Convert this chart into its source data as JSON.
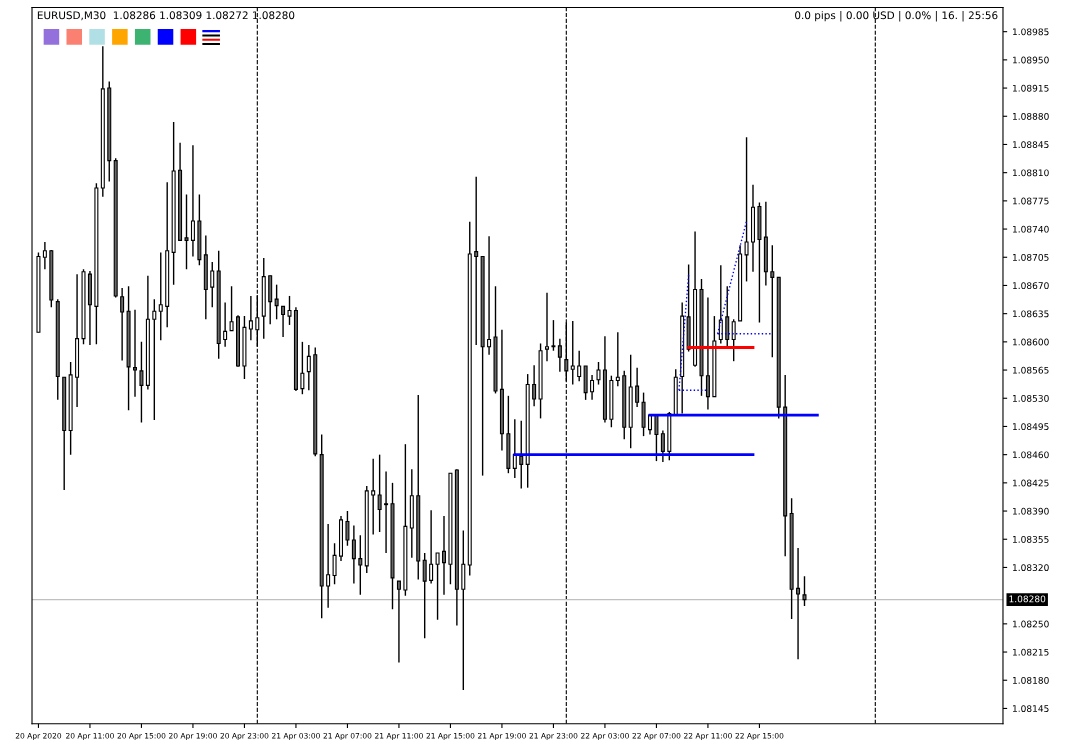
{
  "chart_data": {
    "type": "candlestick",
    "title": "EURUSD,M30  1.08286 1.08309 1.08272 1.08280",
    "annotations": [
      "0.0 pips | 0.00 USD | 0.0% | 16. | 25:56"
    ],
    "x": [
      "2020-04-20T07:00",
      "2020-04-20T07:30",
      "2020-04-20T08:00",
      "2020-04-20T08:30",
      "2020-04-20T09:00",
      "2020-04-20T09:30",
      "2020-04-20T10:00",
      "2020-04-20T10:30",
      "2020-04-20T11:00",
      "2020-04-20T11:30",
      "2020-04-20T12:00",
      "2020-04-20T12:30",
      "2020-04-20T13:00",
      "2020-04-20T13:30",
      "2020-04-20T14:00",
      "2020-04-20T14:30",
      "2020-04-20T15:00",
      "2020-04-20T15:30",
      "2020-04-20T16:00",
      "2020-04-20T16:30",
      "2020-04-20T17:00",
      "2020-04-20T17:30",
      "2020-04-20T18:00",
      "2020-04-20T18:30",
      "2020-04-20T19:00",
      "2020-04-20T19:30",
      "2020-04-20T20:00",
      "2020-04-20T20:30",
      "2020-04-20T21:00",
      "2020-04-20T21:30",
      "2020-04-20T22:00",
      "2020-04-20T22:30",
      "2020-04-20T23:00",
      "2020-04-20T23:30",
      "2020-04-21T00:00",
      "2020-04-21T00:30",
      "2020-04-21T01:00",
      "2020-04-21T01:30",
      "2020-04-21T02:00",
      "2020-04-21T02:30",
      "2020-04-21T03:00",
      "2020-04-21T03:30",
      "2020-04-21T04:00",
      "2020-04-21T04:30",
      "2020-04-21T05:00",
      "2020-04-21T05:30",
      "2020-04-21T06:00",
      "2020-04-21T06:30",
      "2020-04-21T07:00",
      "2020-04-21T07:30",
      "2020-04-21T08:00",
      "2020-04-21T08:30",
      "2020-04-21T09:00",
      "2020-04-21T09:30",
      "2020-04-21T10:00",
      "2020-04-21T10:30",
      "2020-04-21T11:00",
      "2020-04-21T11:30",
      "2020-04-21T12:00",
      "2020-04-21T12:30",
      "2020-04-21T13:00",
      "2020-04-21T13:30",
      "2020-04-21T14:00",
      "2020-04-21T14:30",
      "2020-04-21T15:00",
      "2020-04-21T15:30",
      "2020-04-21T16:00",
      "2020-04-21T16:30",
      "2020-04-21T17:00",
      "2020-04-21T17:30",
      "2020-04-21T18:00",
      "2020-04-21T18:30",
      "2020-04-21T19:00",
      "2020-04-21T19:30",
      "2020-04-21T20:00",
      "2020-04-21T20:30",
      "2020-04-21T21:00",
      "2020-04-21T21:30",
      "2020-04-21T22:00",
      "2020-04-21T22:30",
      "2020-04-21T23:00",
      "2020-04-21T23:30",
      "2020-04-22T00:00",
      "2020-04-22T00:30",
      "2020-04-22T01:00",
      "2020-04-22T01:30",
      "2020-04-22T02:00",
      "2020-04-22T02:30",
      "2020-04-22T03:00",
      "2020-04-22T03:30",
      "2020-04-22T04:00",
      "2020-04-22T04:30",
      "2020-04-22T05:00",
      "2020-04-22T05:30",
      "2020-04-22T06:00",
      "2020-04-22T06:30",
      "2020-04-22T07:00",
      "2020-04-22T07:30",
      "2020-04-22T08:00",
      "2020-04-22T08:30",
      "2020-04-22T09:00",
      "2020-04-22T09:30",
      "2020-04-22T10:00",
      "2020-04-22T10:30",
      "2020-04-22T11:00",
      "2020-04-22T11:30",
      "2020-04-22T12:00",
      "2020-04-22T12:30",
      "2020-04-22T13:00",
      "2020-04-22T13:30",
      "2020-04-22T14:00",
      "2020-04-22T14:30",
      "2020-04-22T15:00",
      "2020-04-22T15:30",
      "2020-04-22T16:00",
      "2020-04-22T16:30",
      "2020-04-22T17:00",
      "2020-04-22T17:30",
      "2020-04-22T18:00",
      "2020-04-22T18:30"
    ],
    "ohlc": [
      [
        1.08612,
        1.08711,
        1.08612,
        1.08706
      ],
      [
        1.08705,
        1.08724,
        1.0869,
        1.08713
      ],
      [
        1.08713,
        1.08714,
        1.08643,
        1.08652
      ],
      [
        1.0865,
        1.08653,
        1.08528,
        1.08557
      ],
      [
        1.08556,
        1.08556,
        1.08416,
        1.0849
      ],
      [
        1.0849,
        1.08575,
        1.0846,
        1.08559
      ],
      [
        1.08556,
        1.08684,
        1.08519,
        1.08604
      ],
      [
        1.08604,
        1.0869,
        1.08597,
        1.08687
      ],
      [
        1.08684,
        1.08688,
        1.08596,
        1.08646
      ],
      [
        1.08644,
        1.08797,
        1.08597,
        1.08791
      ],
      [
        1.08791,
        1.08967,
        1.0878,
        1.08914
      ],
      [
        1.08915,
        1.08923,
        1.08799,
        1.08825
      ],
      [
        1.08825,
        1.08828,
        1.08655,
        1.08657
      ],
      [
        1.08656,
        1.08667,
        1.08577,
        1.08637
      ],
      [
        1.08638,
        1.08669,
        1.08515,
        1.08569
      ],
      [
        1.08568,
        1.0864,
        1.08532,
        1.08565
      ],
      [
        1.08564,
        1.086,
        1.085,
        1.08546
      ],
      [
        1.08546,
        1.08682,
        1.08541,
        1.08628
      ],
      [
        1.08628,
        1.08653,
        1.08503,
        1.08638
      ],
      [
        1.08638,
        1.08711,
        1.08602,
        1.08646
      ],
      [
        1.08644,
        1.08798,
        1.08618,
        1.08713
      ],
      [
        1.08711,
        1.08873,
        1.08671,
        1.08812
      ],
      [
        1.08813,
        1.08847,
        1.08726,
        1.08726
      ],
      [
        1.08729,
        1.08783,
        1.0869,
        1.08726
      ],
      [
        1.08726,
        1.08844,
        1.08706,
        1.0875
      ],
      [
        1.0875,
        1.08783,
        1.08695,
        1.08702
      ],
      [
        1.08708,
        1.08732,
        1.08628,
        1.08665
      ],
      [
        1.08668,
        1.08699,
        1.08643,
        1.08688
      ],
      [
        1.08688,
        1.08713,
        1.08579,
        1.08598
      ],
      [
        1.08603,
        1.08649,
        1.08594,
        1.08613
      ],
      [
        1.08614,
        1.08669,
        1.08614,
        1.08625
      ],
      [
        1.08631,
        1.08633,
        1.08569,
        1.0857
      ],
      [
        1.0857,
        1.08632,
        1.08554,
        1.08618
      ],
      [
        1.08616,
        1.08657,
        1.08602,
        1.08626
      ],
      [
        1.08615,
        1.08658,
        1.08594,
        1.0863
      ],
      [
        1.08632,
        1.08704,
        1.08604,
        1.08681
      ],
      [
        1.08682,
        1.08682,
        1.08622,
        1.0865
      ],
      [
        1.08653,
        1.08671,
        1.08628,
        1.08645
      ],
      [
        1.08644,
        1.08644,
        1.08606,
        1.08634
      ],
      [
        1.08632,
        1.08657,
        1.08621,
        1.08639
      ],
      [
        1.08639,
        1.08643,
        1.08539,
        1.08541
      ],
      [
        1.08542,
        1.086,
        1.08535,
        1.08561
      ],
      [
        1.08563,
        1.08596,
        1.0854,
        1.08582
      ],
      [
        1.08584,
        1.08593,
        1.08458,
        1.08461
      ],
      [
        1.0846,
        1.08485,
        1.08257,
        1.08297
      ],
      [
        1.08297,
        1.08374,
        1.0827,
        1.08311
      ],
      [
        1.0831,
        1.0835,
        1.08299,
        1.08335
      ],
      [
        1.08334,
        1.08384,
        1.08328,
        1.08379
      ],
      [
        1.08377,
        1.0839,
        1.08347,
        1.08354
      ],
      [
        1.08354,
        1.08372,
        1.083,
        1.08331
      ],
      [
        1.08331,
        1.0836,
        1.08286,
        1.08323
      ],
      [
        1.08322,
        1.08421,
        1.08313,
        1.08415
      ],
      [
        1.0841,
        1.08455,
        1.08361,
        1.08415
      ],
      [
        1.0841,
        1.0846,
        1.08364,
        1.08392
      ],
      [
        1.08399,
        1.08439,
        1.08338,
        1.08398
      ],
      [
        1.08399,
        1.08425,
        1.08268,
        1.08307
      ],
      [
        1.08303,
        1.08303,
        1.08202,
        1.08293
      ],
      [
        1.08292,
        1.08473,
        1.08285,
        1.08371
      ],
      [
        1.08369,
        1.08442,
        1.08332,
        1.08409
      ],
      [
        1.08409,
        1.08534,
        1.08305,
        1.08328
      ],
      [
        1.08329,
        1.08338,
        1.08232,
        1.08303
      ],
      [
        1.08304,
        1.08391,
        1.083,
        1.08324
      ],
      [
        1.08324,
        1.08338,
        1.08255,
        1.08338
      ],
      [
        1.0834,
        1.08384,
        1.08286,
        1.08326
      ],
      [
        1.08324,
        1.08437,
        1.08299,
        1.08437
      ],
      [
        1.08441,
        1.08442,
        1.08248,
        1.08293
      ],
      [
        1.08293,
        1.08366,
        1.08168,
        1.08324
      ],
      [
        1.08323,
        1.08749,
        1.0831,
        1.08709
      ],
      [
        1.08712,
        1.08805,
        1.08596,
        1.08706
      ],
      [
        1.08706,
        1.08706,
        1.08434,
        1.08594
      ],
      [
        1.08594,
        1.08731,
        1.08584,
        1.08603
      ],
      [
        1.08606,
        1.08669,
        1.08536,
        1.08539
      ],
      [
        1.08541,
        1.08615,
        1.08465,
        1.08486
      ],
      [
        1.08486,
        1.08533,
        1.08437,
        1.08443
      ],
      [
        1.08443,
        1.08504,
        1.08431,
        1.0846
      ],
      [
        1.08458,
        1.08502,
        1.08418,
        1.08448
      ],
      [
        1.08448,
        1.0856,
        1.08419,
        1.08547
      ],
      [
        1.08547,
        1.08571,
        1.0852,
        1.08529
      ],
      [
        1.08529,
        1.08598,
        1.08505,
        1.08589
      ],
      [
        1.08591,
        1.08661,
        1.08576,
        1.08594
      ],
      [
        1.08595,
        1.08627,
        1.08589,
        1.08594
      ],
      [
        1.08595,
        1.08604,
        1.08563,
        1.08581
      ],
      [
        1.08578,
        1.08624,
        1.08551,
        1.08564
      ],
      [
        1.08566,
        1.08626,
        1.08547,
        1.0857
      ],
      [
        1.08557,
        1.08589,
        1.08551,
        1.0857
      ],
      [
        1.0857,
        1.0857,
        1.08528,
        1.08537
      ],
      [
        1.08538,
        1.08559,
        1.08528,
        1.08552
      ],
      [
        1.08553,
        1.08575,
        1.08547,
        1.08565
      ],
      [
        1.08565,
        1.08607,
        1.085,
        1.08504
      ],
      [
        1.08504,
        1.08558,
        1.08494,
        1.08552
      ],
      [
        1.08552,
        1.08612,
        1.08545,
        1.08556
      ],
      [
        1.08558,
        1.08564,
        1.08479,
        1.08494
      ],
      [
        1.08494,
        1.08584,
        1.08468,
        1.08544
      ],
      [
        1.08545,
        1.08568,
        1.08519,
        1.08525
      ],
      [
        1.08525,
        1.08537,
        1.08483,
        1.08494
      ],
      [
        1.08491,
        1.08509,
        1.08485,
        1.08509
      ],
      [
        1.08509,
        1.08509,
        1.08452,
        1.08485
      ],
      [
        1.08486,
        1.0849,
        1.08451,
        1.08464
      ],
      [
        1.08464,
        1.08513,
        1.08453,
        1.08511
      ],
      [
        1.08509,
        1.08566,
        1.08508,
        1.08556
      ],
      [
        1.08557,
        1.08649,
        1.08511,
        1.08632
      ],
      [
        1.08631,
        1.08696,
        1.08588,
        1.08591
      ],
      [
        1.08571,
        1.08737,
        1.08569,
        1.08665
      ],
      [
        1.08665,
        1.08678,
        1.08533,
        1.08558
      ],
      [
        1.08558,
        1.08655,
        1.08516,
        1.08532
      ],
      [
        1.08532,
        1.08632,
        1.08532,
        1.08601
      ],
      [
        1.08603,
        1.08695,
        1.08598,
        1.08627
      ],
      [
        1.08631,
        1.08669,
        1.08594,
        1.08603
      ],
      [
        1.08603,
        1.08628,
        1.08576,
        1.08625
      ],
      [
        1.08626,
        1.0872,
        1.08626,
        1.08709
      ],
      [
        1.08708,
        1.08854,
        1.08675,
        1.08724
      ],
      [
        1.08724,
        1.08795,
        1.08687,
        1.08767
      ],
      [
        1.08768,
        1.08773,
        1.08624,
        1.08727
      ],
      [
        1.0873,
        1.08774,
        1.0867,
        1.08687
      ],
      [
        1.08687,
        1.0872,
        1.08581,
        1.0868
      ],
      [
        1.0868,
        1.0868,
        1.08505,
        1.08519
      ],
      [
        1.08519,
        1.08559,
        1.08334,
        1.08384
      ],
      [
        1.08387,
        1.08406,
        1.08256,
        1.08293
      ],
      [
        1.08294,
        1.08344,
        1.08206,
        1.08287
      ],
      [
        1.08286,
        1.08309,
        1.08272,
        1.0828
      ]
    ],
    "series": [
      {
        "type": "line",
        "x": [
          "2020-04-21T20:00",
          "2020-04-22T14:30"
        ],
        "values": [
          1.0846,
          1.0846
        ],
        "color": "#0000ff",
        "line_style": "solid"
      },
      {
        "type": "line",
        "x": [
          "2020-04-22T06:30",
          "2020-04-22T19:30"
        ],
        "values": [
          1.08509,
          1.08509
        ],
        "color": "#0000ff",
        "line_style": "solid"
      },
      {
        "type": "line",
        "x": [
          "2020-04-22T09:30",
          "2020-04-22T14:30"
        ],
        "values": [
          1.08593,
          1.08593
        ],
        "color": "#ff0000",
        "line_style": "solid"
      },
      {
        "type": "line",
        "x": [
          "2020-04-22T08:45",
          "2020-04-22T11:00"
        ],
        "values": [
          1.0854,
          1.0854
        ],
        "color": "#0000ff",
        "line_style": "dotted"
      },
      {
        "type": "line",
        "x": [
          "2020-04-22T08:45",
          "2020-04-22T09:30"
        ],
        "values": [
          1.0854,
          1.08683
        ],
        "color": "#0000ff",
        "line_style": "dotted"
      },
      {
        "type": "line",
        "x": [
          "2020-04-22T11:45",
          "2020-04-22T16:00"
        ],
        "values": [
          1.0861,
          1.0861
        ],
        "color": "#0000ff",
        "line_style": "dotted"
      },
      {
        "type": "line",
        "x": [
          "2020-04-22T11:45",
          "2020-04-22T14:00"
        ],
        "values": [
          1.0861,
          1.0875
        ],
        "color": "#0000ff",
        "line_style": "dotted"
      }
    ],
    "ref_lines": [
      {
        "axis": "x",
        "value": "2020-04-21T00:00",
        "label": null,
        "color": "#000000",
        "line_style": "dashed"
      },
      {
        "axis": "x",
        "value": "2020-04-22T00:00",
        "label": null,
        "color": "#000000",
        "line_style": "dashed"
      },
      {
        "axis": "x",
        "value": "2020-04-23T00:00",
        "label": null,
        "color": "#000000",
        "line_style": "dashed"
      },
      {
        "axis": "y",
        "value": 1.0828,
        "label": "1.08280",
        "color": "#c0c0c0",
        "line_style": "solid"
      }
    ],
    "xlim": [
      "2020-04-20T06:30",
      "2020-04-23T09:55"
    ],
    "xticks": [
      {
        "value": "2020-04-20T07:00",
        "label": "20 Apr 2020"
      },
      {
        "value": "2020-04-20T11:00",
        "label": "20 Apr 11:00"
      },
      {
        "value": "2020-04-20T15:00",
        "label": "20 Apr 15:00"
      },
      {
        "value": "2020-04-20T19:00",
        "label": "20 Apr 19:00"
      },
      {
        "value": "2020-04-20T23:00",
        "label": "20 Apr 23:00"
      },
      {
        "value": "2020-04-21T03:00",
        "label": "21 Apr 03:00"
      },
      {
        "value": "2020-04-21T07:00",
        "label": "21 Apr 07:00"
      },
      {
        "value": "2020-04-21T11:00",
        "label": "21 Apr 11:00"
      },
      {
        "value": "2020-04-21T15:00",
        "label": "21 Apr 15:00"
      },
      {
        "value": "2020-04-21T19:00",
        "label": "21 Apr 19:00"
      },
      {
        "value": "2020-04-21T23:00",
        "label": "21 Apr 23:00"
      },
      {
        "value": "2020-04-22T03:00",
        "label": "22 Apr 03:00"
      },
      {
        "value": "2020-04-22T07:00",
        "label": "22 Apr 07:00"
      },
      {
        "value": "2020-04-22T11:00",
        "label": "22 Apr 11:00"
      },
      {
        "value": "2020-04-22T15:00",
        "label": "22 Apr 15:00"
      }
    ],
    "ylim": [
      1.08126,
      1.09015
    ],
    "yticks": [
      {
        "value": 1.08145,
        "label": "1.08145"
      },
      {
        "value": 1.0818,
        "label": "1.08180"
      },
      {
        "value": 1.08215,
        "label": "1.08215"
      },
      {
        "value": 1.0825,
        "label": "1.08250"
      },
      {
        "value": 1.0832,
        "label": "1.08320"
      },
      {
        "value": 1.08355,
        "label": "1.08355"
      },
      {
        "value": 1.0839,
        "label": "1.08390"
      },
      {
        "value": 1.08425,
        "label": "1.08425"
      },
      {
        "value": 1.0846,
        "label": "1.08460"
      },
      {
        "value": 1.08495,
        "label": "1.08495"
      },
      {
        "value": 1.0853,
        "label": "1.08530"
      },
      {
        "value": 1.08565,
        "label": "1.08565"
      },
      {
        "value": 1.086,
        "label": "1.08600"
      },
      {
        "value": 1.08635,
        "label": "1.08635"
      },
      {
        "value": 1.0867,
        "label": "1.08670"
      },
      {
        "value": 1.08705,
        "label": "1.08705"
      },
      {
        "value": 1.0874,
        "label": "1.08740"
      },
      {
        "value": 1.08775,
        "label": "1.08775"
      },
      {
        "value": 1.0881,
        "label": "1.08810"
      },
      {
        "value": 1.08845,
        "label": "1.08845"
      },
      {
        "value": 1.0888,
        "label": "1.08880"
      },
      {
        "value": 1.08915,
        "label": "1.08915"
      },
      {
        "value": 1.0895,
        "label": "1.08950"
      },
      {
        "value": 1.08985,
        "label": "1.08985"
      }
    ],
    "grid": false
  }
}
